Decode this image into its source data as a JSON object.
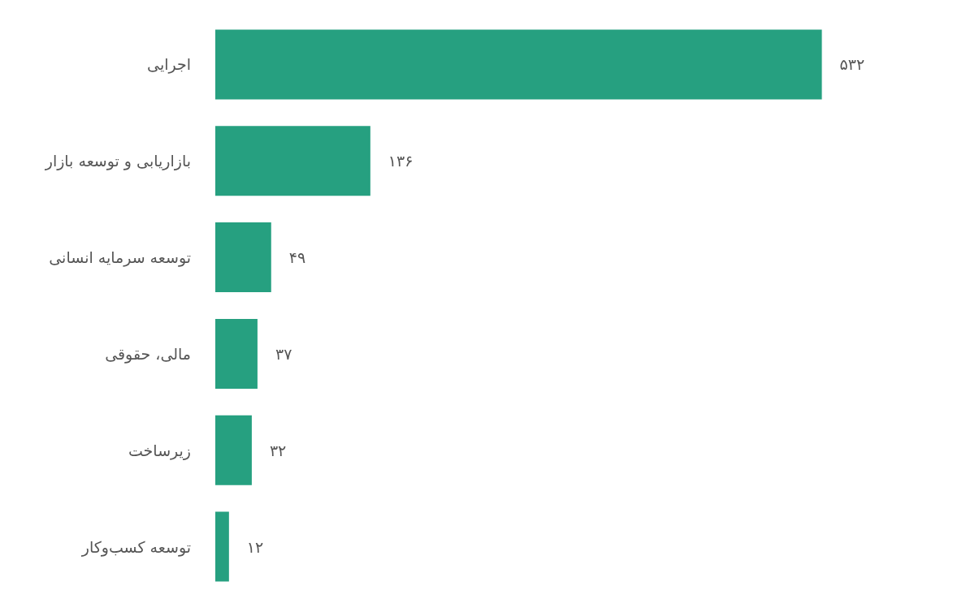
{
  "chart_data": {
    "type": "bar",
    "orientation": "horizontal",
    "categories": [
      "اجرایی",
      "بازاریابی و توسعه بازار",
      "توسعه سرمایه انسانی",
      "مالی، حقوقی",
      "زیرساخت",
      "توسعه کسب‌وکار"
    ],
    "values": [
      532,
      136,
      49,
      37,
      32,
      12
    ],
    "value_labels": [
      "۵۳۲",
      "۱۳۶",
      "۴۹",
      "۳۷",
      "۳۲",
      "۱۲"
    ],
    "color": "#26a080"
  }
}
